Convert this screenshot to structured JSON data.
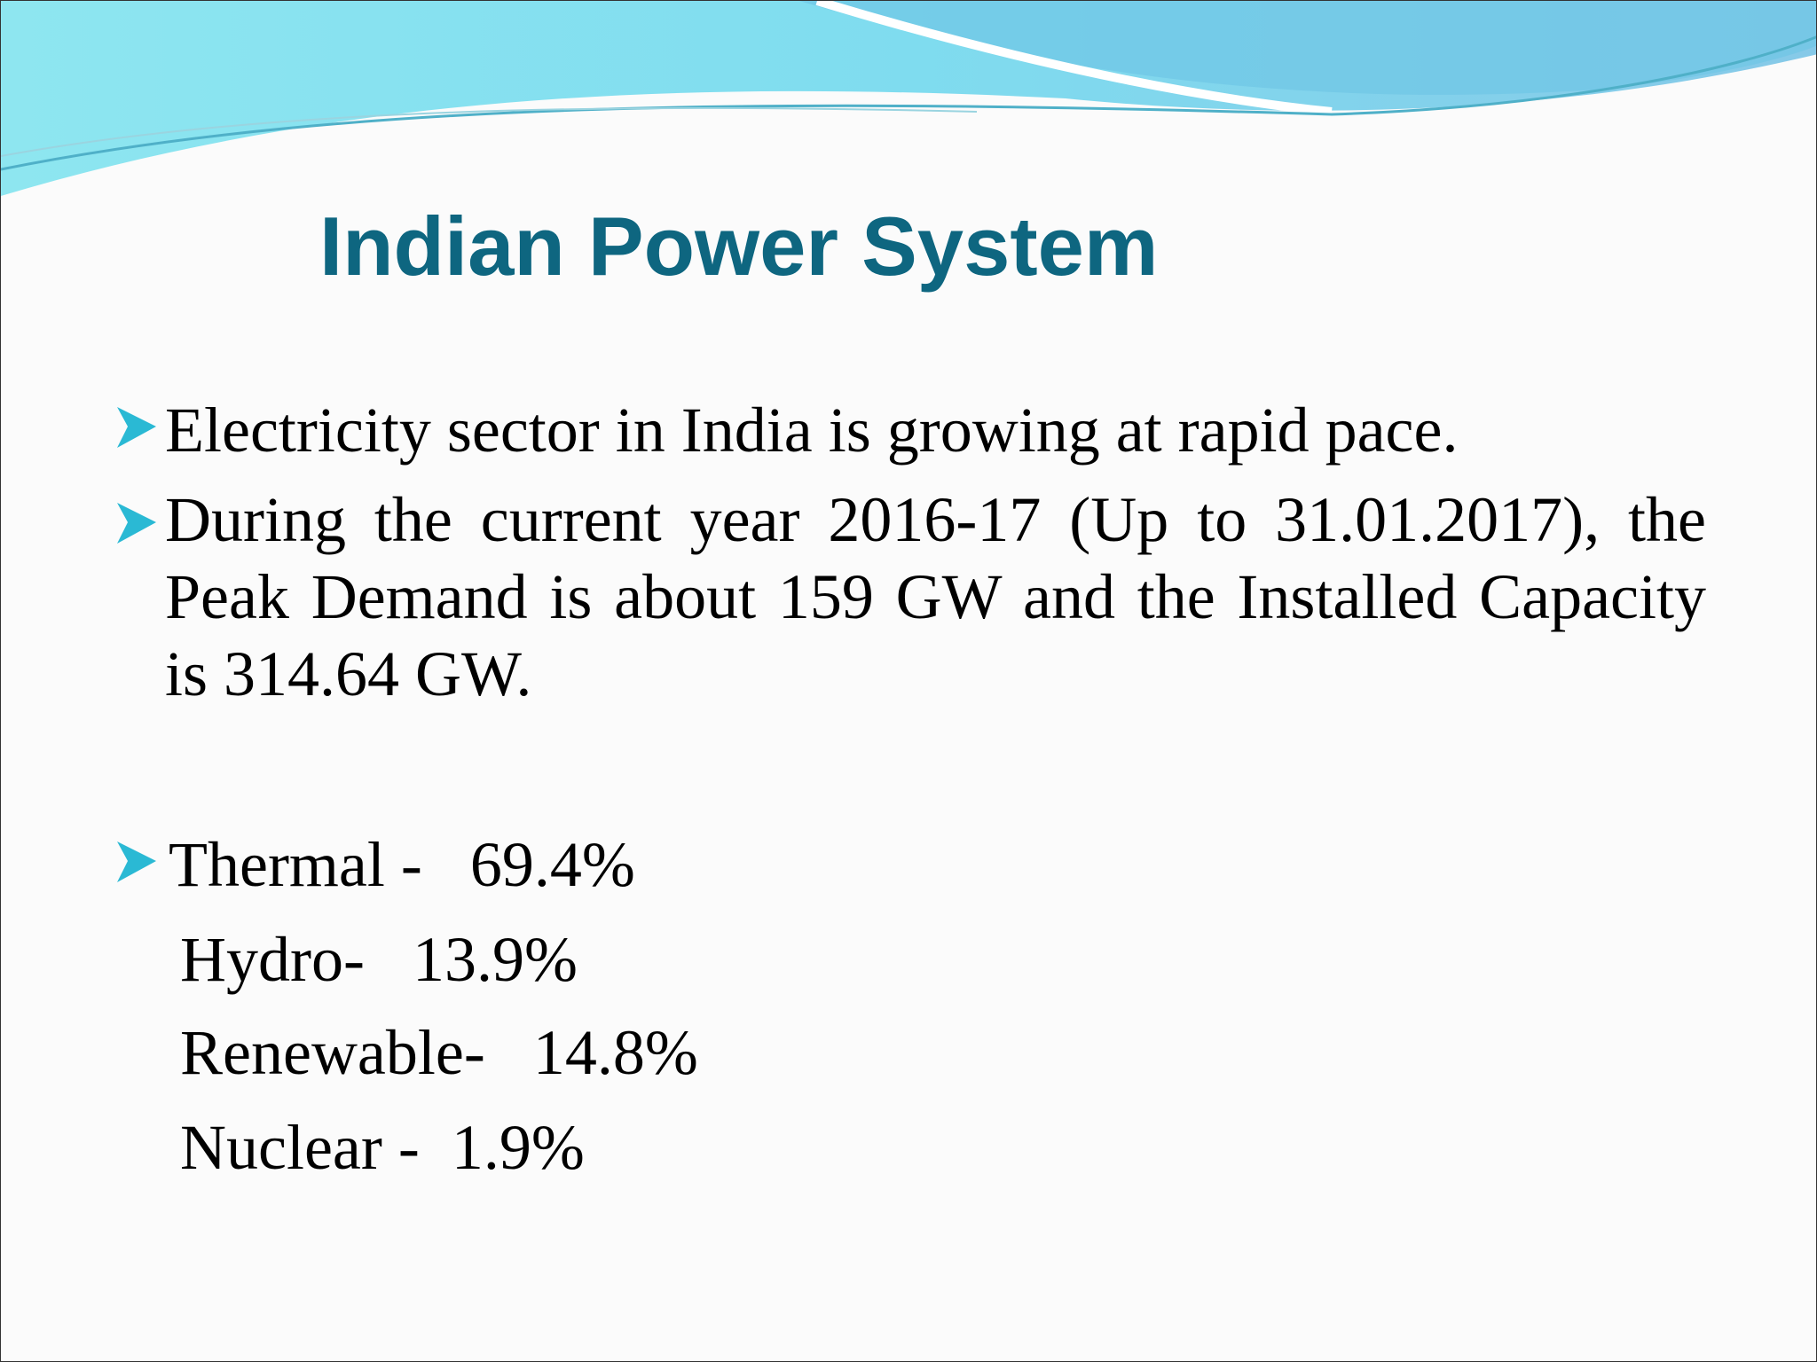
{
  "slide": {
    "title": "Indian Power System",
    "bullets": [
      "Electricity sector in India is growing at rapid pace.",
      "During the current year 2016-17 (Up to 31.01.2017), the Peak Demand is about 159 GW and the Installed Capacity is 314.64 GW."
    ],
    "shares": [
      "Thermal -   69.4%",
      "Hydro-   13.9%",
      "Renewable-   14.8%",
      "Nuclear -  1.9%"
    ]
  }
}
